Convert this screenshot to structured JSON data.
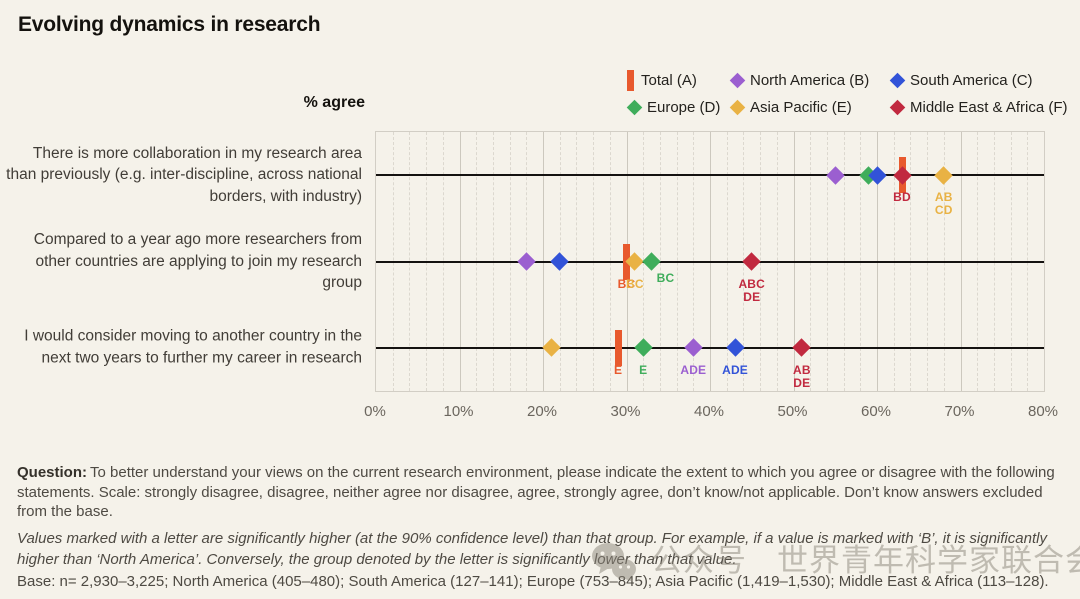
{
  "title": "Evolving dynamics in research",
  "chart_data": {
    "type": "scatter",
    "title": "Evolving dynamics in research",
    "xlabel": "% agree",
    "xlim": [
      0,
      80
    ],
    "x_tick_step_major": 10,
    "x_tick_step_minor": 2,
    "x_tick_labels": [
      "0%",
      "10%",
      "20%",
      "30%",
      "40%",
      "50%",
      "60%",
      "70%",
      "80%"
    ],
    "grid": "major-solid-minor-dashed",
    "legend_position": "top-right",
    "groups": [
      {
        "id": "A",
        "name": "Total",
        "legend_label": "Total (A)",
        "marker": "bar",
        "color": "#e8592d"
      },
      {
        "id": "B",
        "name": "North America",
        "legend_label": "North America (B)",
        "marker": "diamond",
        "color": "#9b5fd0"
      },
      {
        "id": "C",
        "name": "South America",
        "legend_label": "South America (C)",
        "marker": "diamond",
        "color": "#3253d8"
      },
      {
        "id": "D",
        "name": "Europe",
        "legend_label": "Europe (D)",
        "marker": "diamond",
        "color": "#3fad5b"
      },
      {
        "id": "E",
        "name": "Asia Pacific",
        "legend_label": "Asia Pacific (E)",
        "marker": "diamond",
        "color": "#e9b244"
      },
      {
        "id": "F",
        "name": "Middle East & Africa",
        "legend_label": "Middle East & Africa (F)",
        "marker": "diamond",
        "color": "#c1293f"
      }
    ],
    "rows": [
      {
        "label": "There is more collaboration in my research area than previously (e.g. inter-discipline, across national borders, with industry)",
        "points": [
          {
            "group": "A",
            "value": 63
          },
          {
            "group": "B",
            "value": 55
          },
          {
            "group": "D",
            "value": 59
          },
          {
            "group": "C",
            "value": 60
          },
          {
            "group": "E",
            "value": 68,
            "sig": "AB\nCD"
          },
          {
            "group": "F",
            "value": 63,
            "sig": "BD"
          }
        ]
      },
      {
        "label": "Compared to a year ago more researchers from other countries are applying to join my research group",
        "points": [
          {
            "group": "A",
            "value": 30,
            "sig": "BC"
          },
          {
            "group": "B",
            "value": 18
          },
          {
            "group": "C",
            "value": 22
          },
          {
            "group": "E",
            "value": 31,
            "sig": "BC"
          },
          {
            "group": "D",
            "value": 33,
            "sig": "BC",
            "sig_dx": 14,
            "sig_dy": -6
          },
          {
            "group": "F",
            "value": 45,
            "sig": "ABC\nDE"
          }
        ]
      },
      {
        "label": "I would consider moving to another country in the next two years to further my career in research",
        "points": [
          {
            "group": "A",
            "value": 29,
            "sig": "E"
          },
          {
            "group": "E",
            "value": 21
          },
          {
            "group": "D",
            "value": 32,
            "sig": "E"
          },
          {
            "group": "B",
            "value": 38,
            "sig": "ADE"
          },
          {
            "group": "C",
            "value": 43,
            "sig": "ADE"
          },
          {
            "group": "F",
            "value": 51,
            "sig": "AB\nDE"
          }
        ]
      }
    ]
  },
  "footer": {
    "question_label": "Question:",
    "question_text": "To better understand your views on the current research environment, please indicate the extent to which you agree or disagree with the following statements. Scale: strongly disagree, disagree, neither agree nor disagree, agree, strongly agree, don’t know/not applicable. Don’t know answers excluded from the base.",
    "note": "Values marked with a letter are significantly higher (at the 90% confidence level) than that group. For example, if a value is marked with ‘B’, it is significantly higher than ‘North America’. Conversely, the group denoted by the letter is significantly lower than that value.",
    "base": "Base: n= 2,930–3,225; North America (405–480); South America (127–141); Europe (753–845); Asia Pacific (1,419–1,530); Middle East & Africa (113–128)."
  },
  "watermark": {
    "prefix": "公众号",
    "name": "世界青年科学家联合会",
    "icon": "wechat-icon"
  }
}
